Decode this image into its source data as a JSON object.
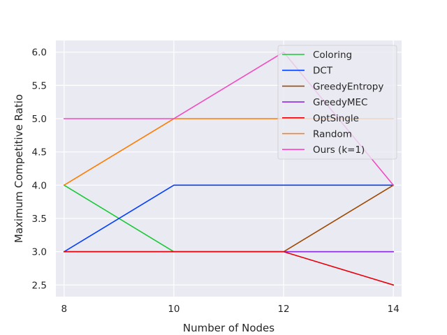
{
  "chart_data": {
    "type": "line",
    "title": "",
    "xlabel": "Number of Nodes",
    "ylabel": "Maximum Competitive Ratio",
    "x": [
      8,
      10,
      12,
      14
    ],
    "xticks": [
      "8",
      "10",
      "12",
      "14"
    ],
    "yticks": [
      "2.5",
      "3.0",
      "3.5",
      "4.0",
      "4.5",
      "5.0",
      "5.5",
      "6.0"
    ],
    "xlim": [
      7.85,
      14.15
    ],
    "ylim": [
      2.325,
      6.175
    ],
    "grid": true,
    "legend_position": "top-right",
    "series": [
      {
        "name": "Coloring",
        "color": "#1ac938",
        "values": [
          4,
          3,
          3,
          3
        ]
      },
      {
        "name": "DCT",
        "color": "#023eff",
        "values": [
          3,
          4,
          4,
          4
        ]
      },
      {
        "name": "GreedyEntropy",
        "color": "#9f4800",
        "values": [
          3,
          3,
          3,
          4
        ]
      },
      {
        "name": "GreedyMEC",
        "color": "#8b2be2",
        "values": [
          3,
          3,
          3,
          3
        ]
      },
      {
        "name": "OptSingle",
        "color": "#e8000b",
        "values": [
          3,
          3,
          3,
          2.5
        ]
      },
      {
        "name": "Random",
        "color": "#ff7c00",
        "values": [
          4,
          5,
          5,
          5
        ]
      },
      {
        "name": "Ours (k=1)",
        "color": "#f14cc1",
        "values": [
          5,
          5,
          6,
          4
        ]
      }
    ]
  }
}
